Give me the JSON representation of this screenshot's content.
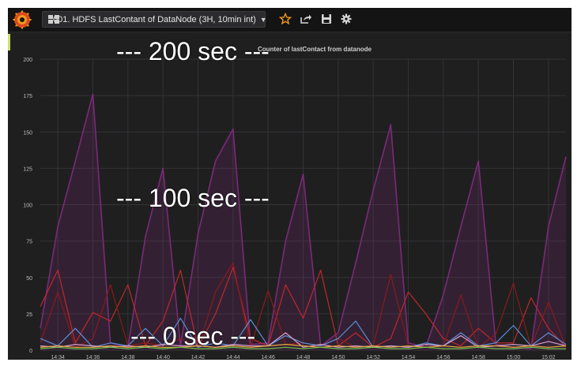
{
  "header": {
    "dashboard_title": "001. HDFS LastContant of DataNode (3H, 10min int)",
    "icons": [
      "grafana-logo-icon",
      "dashboard-grid-icon",
      "chevron-down-icon",
      "star-icon",
      "share-icon",
      "save-icon",
      "gear-icon"
    ],
    "accent_color": "#f29a1d"
  },
  "annotations": {
    "top": "--- 200 sec ---",
    "middle": "--- 100 sec ---",
    "bottom": "--- 0 sec ---"
  },
  "chart_data": {
    "type": "area",
    "title": "Counter of lastContact from datanode",
    "xlabel": "",
    "ylabel": "",
    "ylim": [
      0,
      200
    ],
    "yticks": [
      0,
      25,
      50,
      75,
      100,
      125,
      150,
      175,
      200
    ],
    "xticks": [
      "14:34",
      "14:36",
      "14:38",
      "14:40",
      "14:42",
      "14:44",
      "14:46",
      "14:48",
      "14:50",
      "14:52",
      "14:54",
      "14:56",
      "14:58",
      "15:00",
      "15:02"
    ],
    "x": [
      "14:33",
      "14:34",
      "14:35",
      "14:36",
      "14:37",
      "14:38",
      "14:39",
      "14:40",
      "14:41",
      "14:42",
      "14:43",
      "14:44",
      "14:45",
      "14:46",
      "14:47",
      "14:48",
      "14:49",
      "14:50",
      "14:51",
      "14:52",
      "14:53",
      "14:54",
      "14:55",
      "14:56",
      "14:57",
      "14:58",
      "14:59",
      "15:00",
      "15:01",
      "15:02",
      "15:03"
    ],
    "grid": true,
    "legend": "none",
    "series": [
      {
        "color": "#7b2a78",
        "fill": true,
        "values": [
          15,
          85,
          130,
          176,
          5,
          2,
          78,
          125,
          3,
          80,
          130,
          152,
          4,
          5,
          75,
          121,
          3,
          12,
          60,
          110,
          155,
          5,
          2,
          38,
          85,
          130,
          4,
          2,
          1,
          85,
          133
        ]
      },
      {
        "color": "#c1272d",
        "fill": false,
        "values": [
          30,
          55,
          5,
          26,
          20,
          45,
          3,
          20,
          55,
          2,
          25,
          57,
          8,
          3,
          45,
          22,
          55,
          3,
          12,
          2,
          8,
          40,
          25,
          8,
          3,
          15,
          5,
          5,
          36,
          15,
          2
        ]
      },
      {
        "color": "#8b1a1a",
        "fill": false,
        "values": [
          5,
          40,
          2,
          8,
          45,
          3,
          5,
          3,
          8,
          2,
          40,
          60,
          2,
          41,
          4,
          5,
          3,
          8,
          2,
          3,
          52,
          3,
          2,
          3,
          38,
          2,
          11,
          46,
          2,
          33,
          2
        ]
      },
      {
        "color": "#5a8fd6",
        "fill": false,
        "values": [
          8,
          3,
          15,
          2,
          5,
          3,
          15,
          3,
          22,
          2,
          5,
          3,
          21,
          3,
          10,
          5,
          3,
          8,
          20,
          2,
          3,
          2,
          5,
          3,
          12,
          3,
          5,
          17,
          3,
          12,
          4
        ]
      },
      {
        "color": "#d8a0d0",
        "fill": false,
        "values": [
          3,
          2,
          4,
          3,
          2,
          3,
          2,
          4,
          3,
          3,
          2,
          4,
          3,
          3,
          12,
          2,
          4,
          2,
          3,
          2,
          3,
          2,
          4,
          3,
          10,
          2,
          3,
          4,
          3,
          6,
          3
        ]
      },
      {
        "color": "#e6a940",
        "fill": false,
        "values": [
          2,
          3,
          2,
          2,
          3,
          2,
          3,
          2,
          2,
          3,
          2,
          3,
          2,
          3,
          4,
          3,
          2,
          3,
          2,
          3,
          2,
          3,
          2,
          3,
          2,
          3,
          3,
          2,
          3,
          2,
          3
        ]
      },
      {
        "color": "#6fbf4a",
        "fill": false,
        "values": [
          1,
          2,
          1,
          1,
          2,
          1,
          2,
          1,
          2,
          1,
          1,
          2,
          1,
          1,
          2,
          1,
          2,
          1,
          1,
          2,
          1,
          1,
          2,
          1,
          1,
          2,
          1,
          1,
          2,
          1,
          1
        ]
      }
    ]
  }
}
